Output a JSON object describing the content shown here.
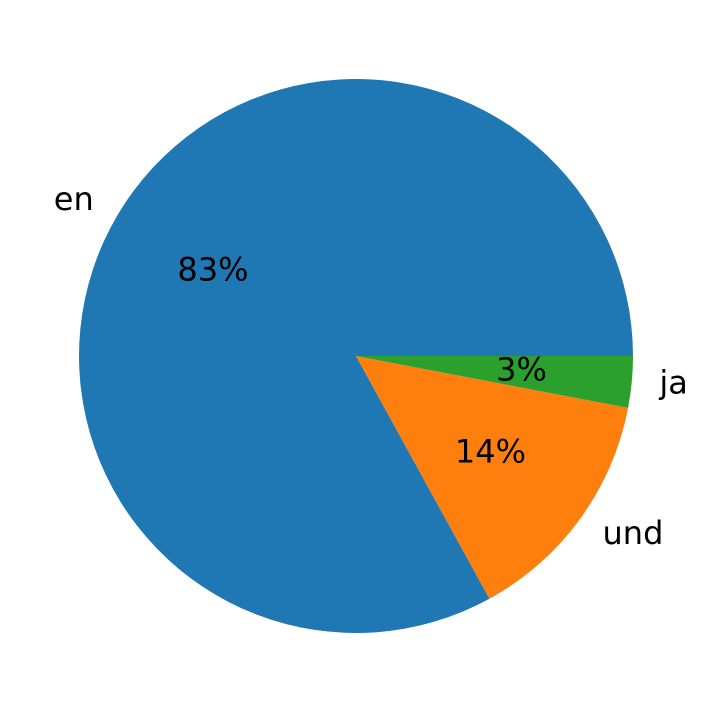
{
  "chart_data": {
    "type": "pie",
    "categories": [
      "en",
      "und",
      "ja"
    ],
    "values": [
      83,
      14,
      3
    ],
    "value_labels": [
      "83%",
      "14%",
      "3%"
    ],
    "colors": [
      "#1f77b4",
      "#ff7f0e",
      "#2ca02c"
    ]
  }
}
